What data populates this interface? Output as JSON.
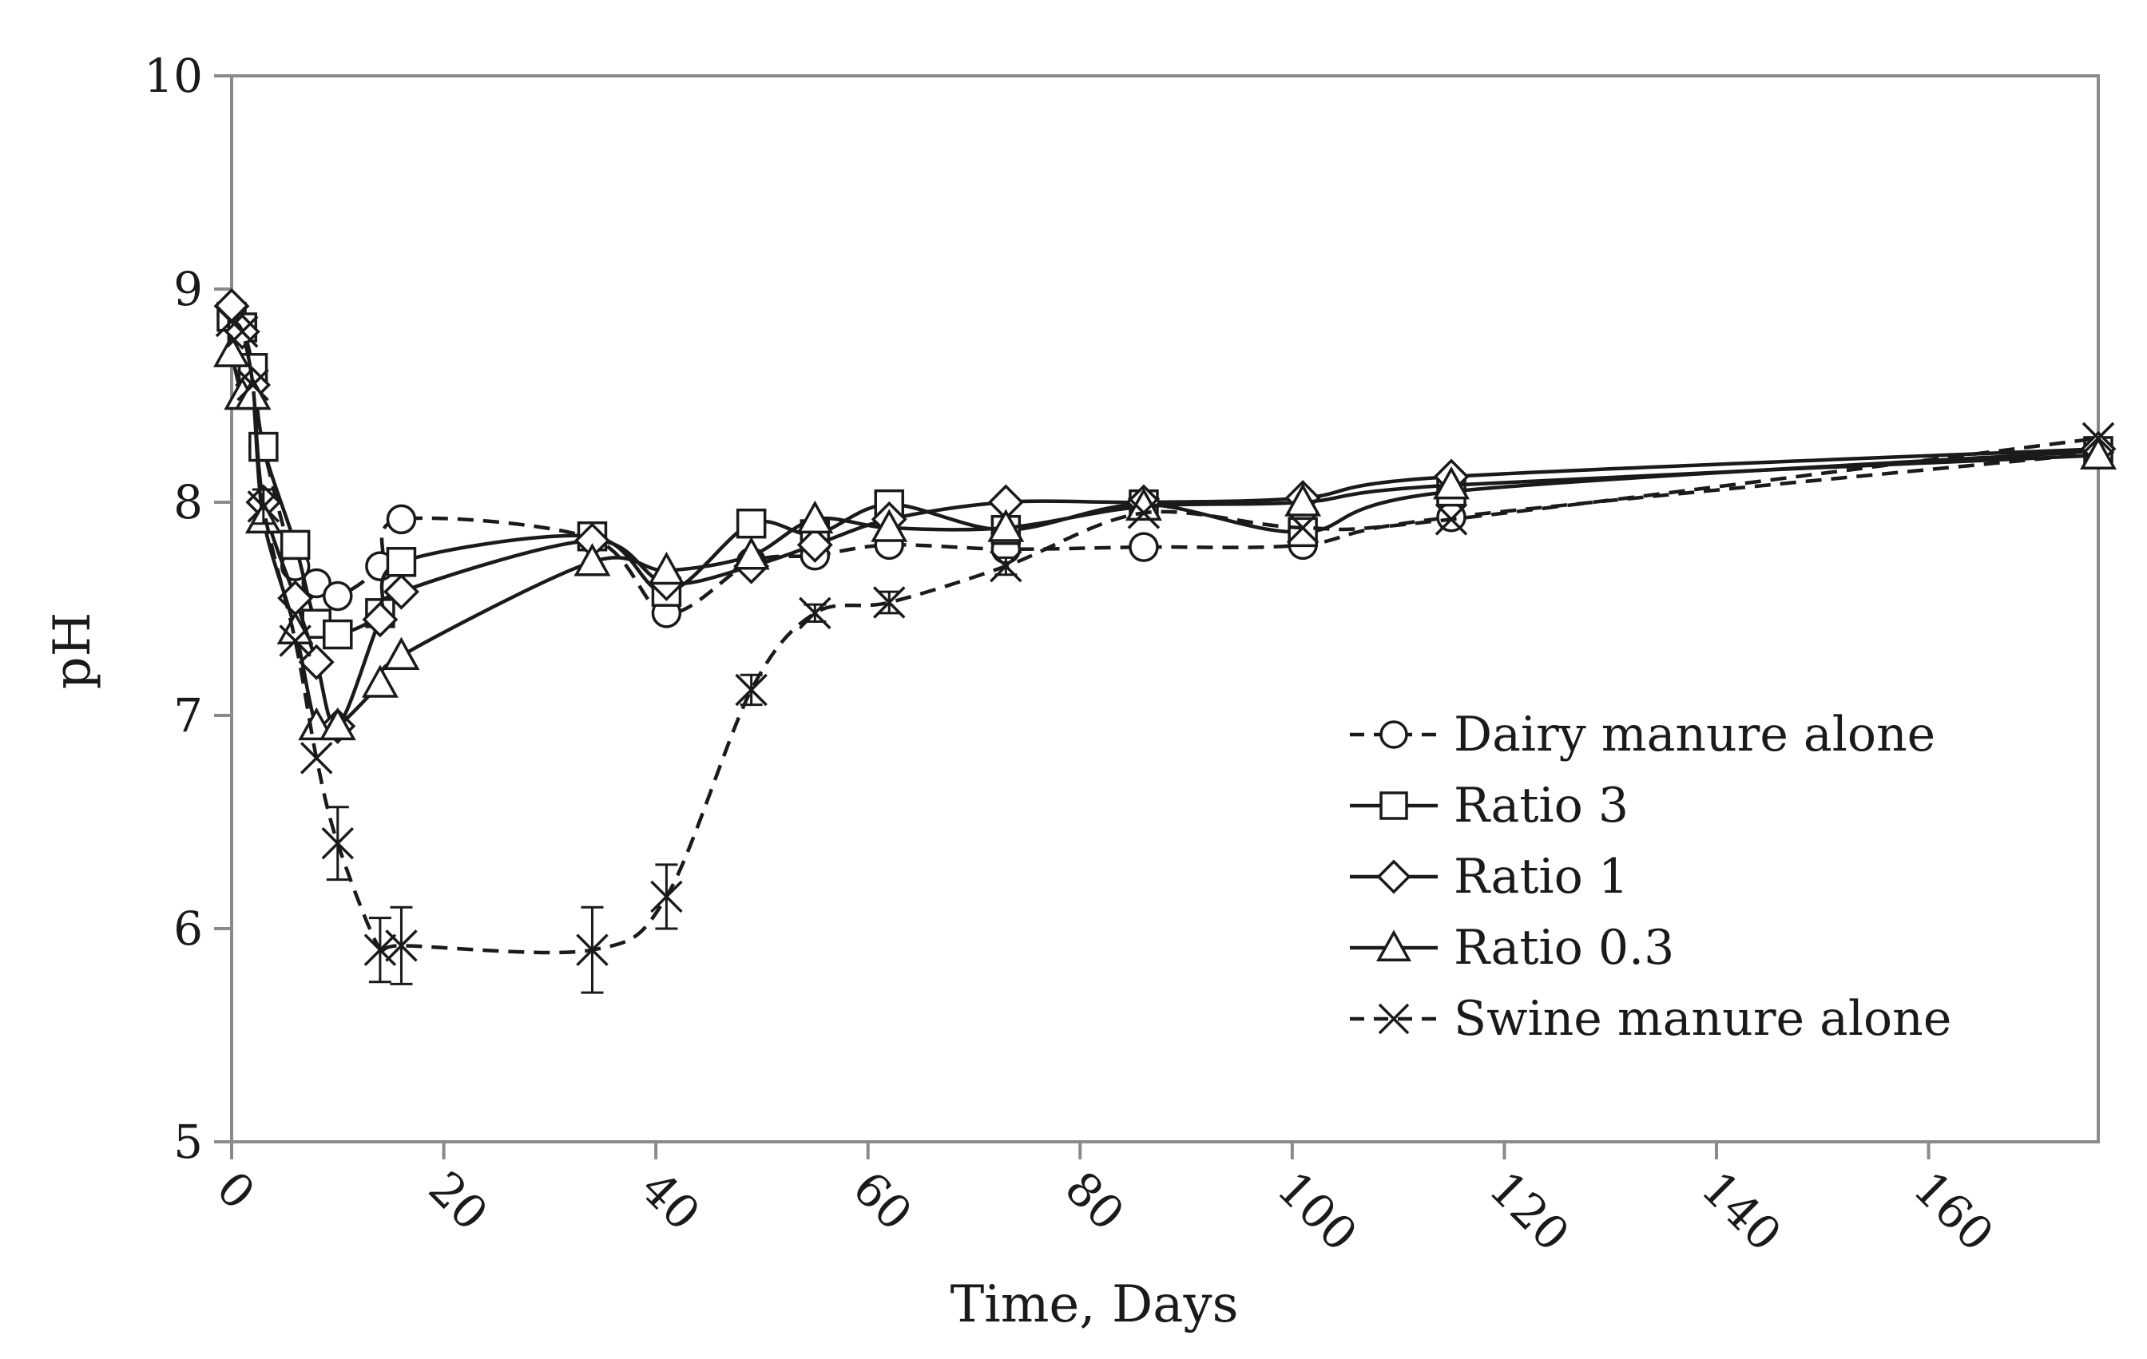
{
  "chart_data": {
    "type": "line",
    "title": "",
    "xlabel": "Time, Days",
    "ylabel": "pH",
    "xlim": [
      0,
      176
    ],
    "ylim": [
      5,
      10
    ],
    "x_ticks": [
      0,
      20,
      40,
      60,
      80,
      100,
      120,
      140,
      160
    ],
    "x_tick_labels": [
      "0",
      "20",
      "40",
      "60",
      "80",
      "100",
      "120",
      "140",
      "160"
    ],
    "y_ticks": [
      5,
      6,
      7,
      8,
      9,
      10
    ],
    "y_tick_labels": [
      "5",
      "6",
      "7",
      "8",
      "9",
      "10"
    ],
    "grid": false,
    "legend_position": "right",
    "colors": {
      "line": "#1a1a1a",
      "background": "#ffffff",
      "axes": "#8a8a8a"
    },
    "series": [
      {
        "name": "Dairy manure alone",
        "marker": "circle",
        "line": "dashed",
        "x": [
          0,
          1,
          2,
          3,
          6,
          8,
          10,
          14,
          16,
          34,
          41,
          49,
          55,
          62,
          73,
          86,
          101,
          115,
          176
        ],
        "y": [
          8.88,
          8.82,
          8.57,
          8.26,
          7.7,
          7.62,
          7.56,
          7.7,
          7.92,
          7.83,
          7.48,
          7.72,
          7.75,
          7.8,
          7.78,
          7.79,
          7.8,
          7.93,
          8.23
        ]
      },
      {
        "name": "Ratio 3",
        "marker": "square",
        "line": "solid",
        "x": [
          0,
          1,
          2,
          3,
          6,
          8,
          10,
          14,
          16,
          34,
          41,
          49,
          55,
          62,
          73,
          86,
          101,
          115,
          176
        ],
        "y": [
          8.87,
          8.82,
          8.63,
          8.26,
          7.8,
          7.43,
          7.38,
          7.48,
          7.72,
          7.84,
          7.58,
          7.9,
          7.85,
          7.99,
          7.87,
          7.99,
          7.86,
          8.05,
          8.24
        ]
      },
      {
        "name": "Ratio 1",
        "marker": "diamond",
        "line": "solid",
        "x": [
          0,
          1,
          2,
          3,
          6,
          8,
          10,
          14,
          16,
          34,
          41,
          49,
          55,
          62,
          73,
          86,
          101,
          115,
          176
        ],
        "y": [
          8.92,
          8.8,
          8.55,
          8.0,
          7.55,
          7.25,
          6.95,
          7.45,
          7.58,
          7.82,
          7.62,
          7.7,
          7.8,
          7.92,
          8.0,
          8.0,
          8.02,
          8.12,
          8.25
        ]
      },
      {
        "name": "Ratio 0.3",
        "marker": "triangle",
        "line": "solid",
        "x": [
          0,
          1,
          2,
          3,
          6,
          8,
          10,
          14,
          16,
          34,
          41,
          49,
          55,
          62,
          73,
          86,
          101,
          115,
          176
        ],
        "y": [
          8.7,
          8.5,
          8.5,
          7.92,
          7.4,
          6.95,
          6.95,
          7.15,
          7.28,
          7.72,
          7.68,
          7.75,
          7.92,
          7.88,
          7.88,
          7.98,
          8.0,
          8.08,
          8.22
        ]
      },
      {
        "name": "Swine manure alone",
        "marker": "cross",
        "line": "dashed",
        "x": [
          0,
          1,
          2,
          3,
          6,
          8,
          10,
          14,
          16,
          34,
          41,
          49,
          55,
          62,
          73,
          86,
          101,
          115,
          176
        ],
        "y": [
          8.85,
          8.8,
          8.55,
          7.98,
          7.35,
          6.8,
          6.4,
          5.9,
          5.92,
          5.9,
          6.15,
          7.12,
          7.48,
          7.53,
          7.7,
          7.95,
          7.88,
          7.92,
          8.3
        ],
        "error": [
          0,
          0,
          0,
          0.08,
          0,
          0,
          0.17,
          0.15,
          0.18,
          0.2,
          0.15,
          0.07,
          0.04,
          0.05,
          0.04,
          0,
          0,
          0,
          0
        ]
      }
    ]
  }
}
